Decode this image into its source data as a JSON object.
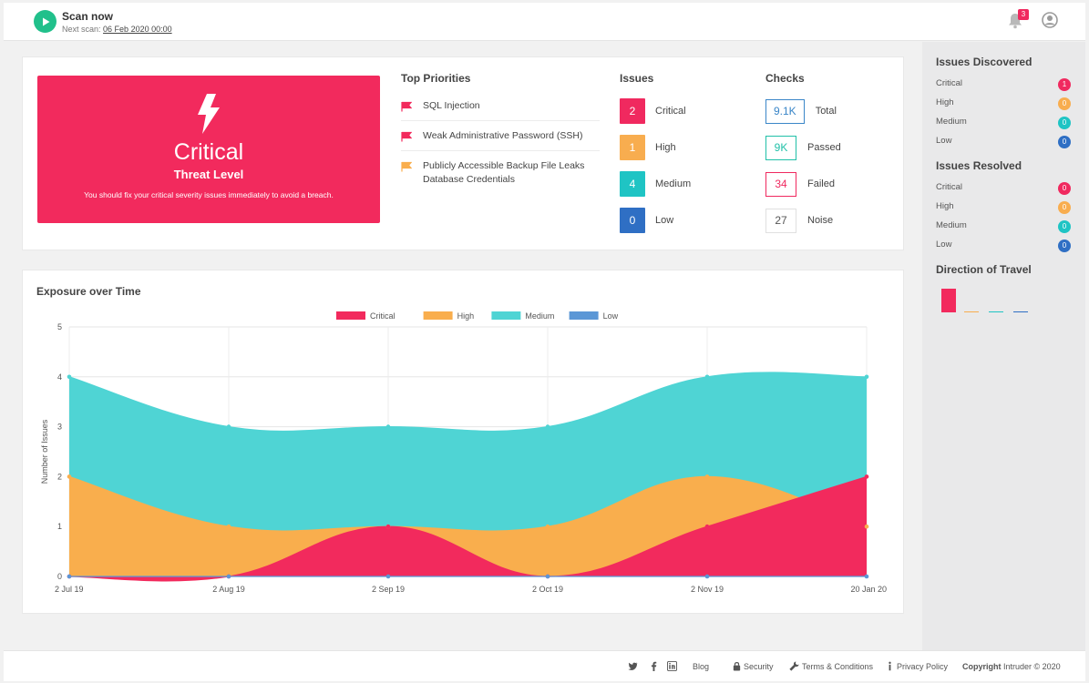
{
  "colors": {
    "critical": "#f22a5d",
    "high": "#f9ae4d",
    "medium": "#4fd4d4",
    "low": "#5b97d6",
    "green": "#21c08b",
    "issue_critical": "#f0295f",
    "issue_high": "#f8ad4f",
    "issue_medium": "#1fc4c4",
    "issue_low": "#2f6fc4"
  },
  "header": {
    "scan_title": "Scan now",
    "next_scan_label": "Next scan:",
    "next_scan_date": "06 Feb 2020 00:00",
    "notification_count": "3",
    "icons": [
      "play-icon",
      "bell-icon",
      "user-icon"
    ]
  },
  "threat": {
    "level": "Critical",
    "subtitle": "Threat Level",
    "message": "You should fix your critical severity issues immediately to avoid a breach."
  },
  "priorities": {
    "title": "Top Priorities",
    "items": [
      {
        "label": "SQL Injection",
        "severity": "critical"
      },
      {
        "label": "Weak Administrative Password (SSH)",
        "severity": "critical"
      },
      {
        "label": "Publicly Accessible Backup File Leaks Database Credentials",
        "severity": "high"
      }
    ]
  },
  "issues": {
    "title": "Issues",
    "items": [
      {
        "label": "Critical",
        "count": "2"
      },
      {
        "label": "High",
        "count": "1"
      },
      {
        "label": "Medium",
        "count": "4"
      },
      {
        "label": "Low",
        "count": "0"
      }
    ]
  },
  "checks": {
    "title": "Checks",
    "items": [
      {
        "label": "Total",
        "value": "9.1K"
      },
      {
        "label": "Passed",
        "value": "9K"
      },
      {
        "label": "Failed",
        "value": "34"
      },
      {
        "label": "Noise",
        "value": "27"
      }
    ]
  },
  "sidebar": {
    "discovered_title": "Issues Discovered",
    "discovered": [
      {
        "label": "Critical",
        "count": "1"
      },
      {
        "label": "High",
        "count": "0"
      },
      {
        "label": "Medium",
        "count": "0"
      },
      {
        "label": "Low",
        "count": "0"
      }
    ],
    "resolved_title": "Issues Resolved",
    "resolved": [
      {
        "label": "Critical",
        "count": "0"
      },
      {
        "label": "High",
        "count": "0"
      },
      {
        "label": "Medium",
        "count": "0"
      },
      {
        "label": "Low",
        "count": "0"
      }
    ],
    "direction_title": "Direction of Travel",
    "direction_values": {
      "Critical": 1,
      "High": 0,
      "Medium": 0,
      "Low": 0
    }
  },
  "chart_data": {
    "type": "area",
    "title": "Exposure over Time",
    "ylabel": "Number of Issues",
    "xlabel": "",
    "ylim": [
      0,
      5
    ],
    "yticks": [
      0,
      1,
      2,
      3,
      4,
      5
    ],
    "grid": true,
    "legend": "top-center",
    "categories": [
      "2 Jul 19",
      "2 Aug 19",
      "2 Sep 19",
      "2 Oct 19",
      "2 Nov 19",
      "20 Jan 20"
    ],
    "series": [
      {
        "name": "Critical",
        "values": [
          0,
          0,
          1,
          0,
          1,
          2
        ]
      },
      {
        "name": "High",
        "values": [
          2,
          1,
          1,
          1,
          2,
          1
        ]
      },
      {
        "name": "Medium",
        "values": [
          4,
          3,
          3,
          3,
          4,
          4
        ]
      },
      {
        "name": "Low",
        "values": [
          0,
          0,
          0,
          0,
          0,
          0
        ]
      }
    ]
  },
  "footer": {
    "blog": "Blog",
    "security": "Security",
    "terms": "Terms & Conditions",
    "privacy": "Privacy Policy",
    "copyright_bold": "Copyright",
    "copyright_rest": "Intruder © 2020",
    "icons": [
      "twitter-icon",
      "facebook-icon",
      "linkedin-icon",
      "lock-icon",
      "wrench-icon",
      "info-icon"
    ]
  }
}
